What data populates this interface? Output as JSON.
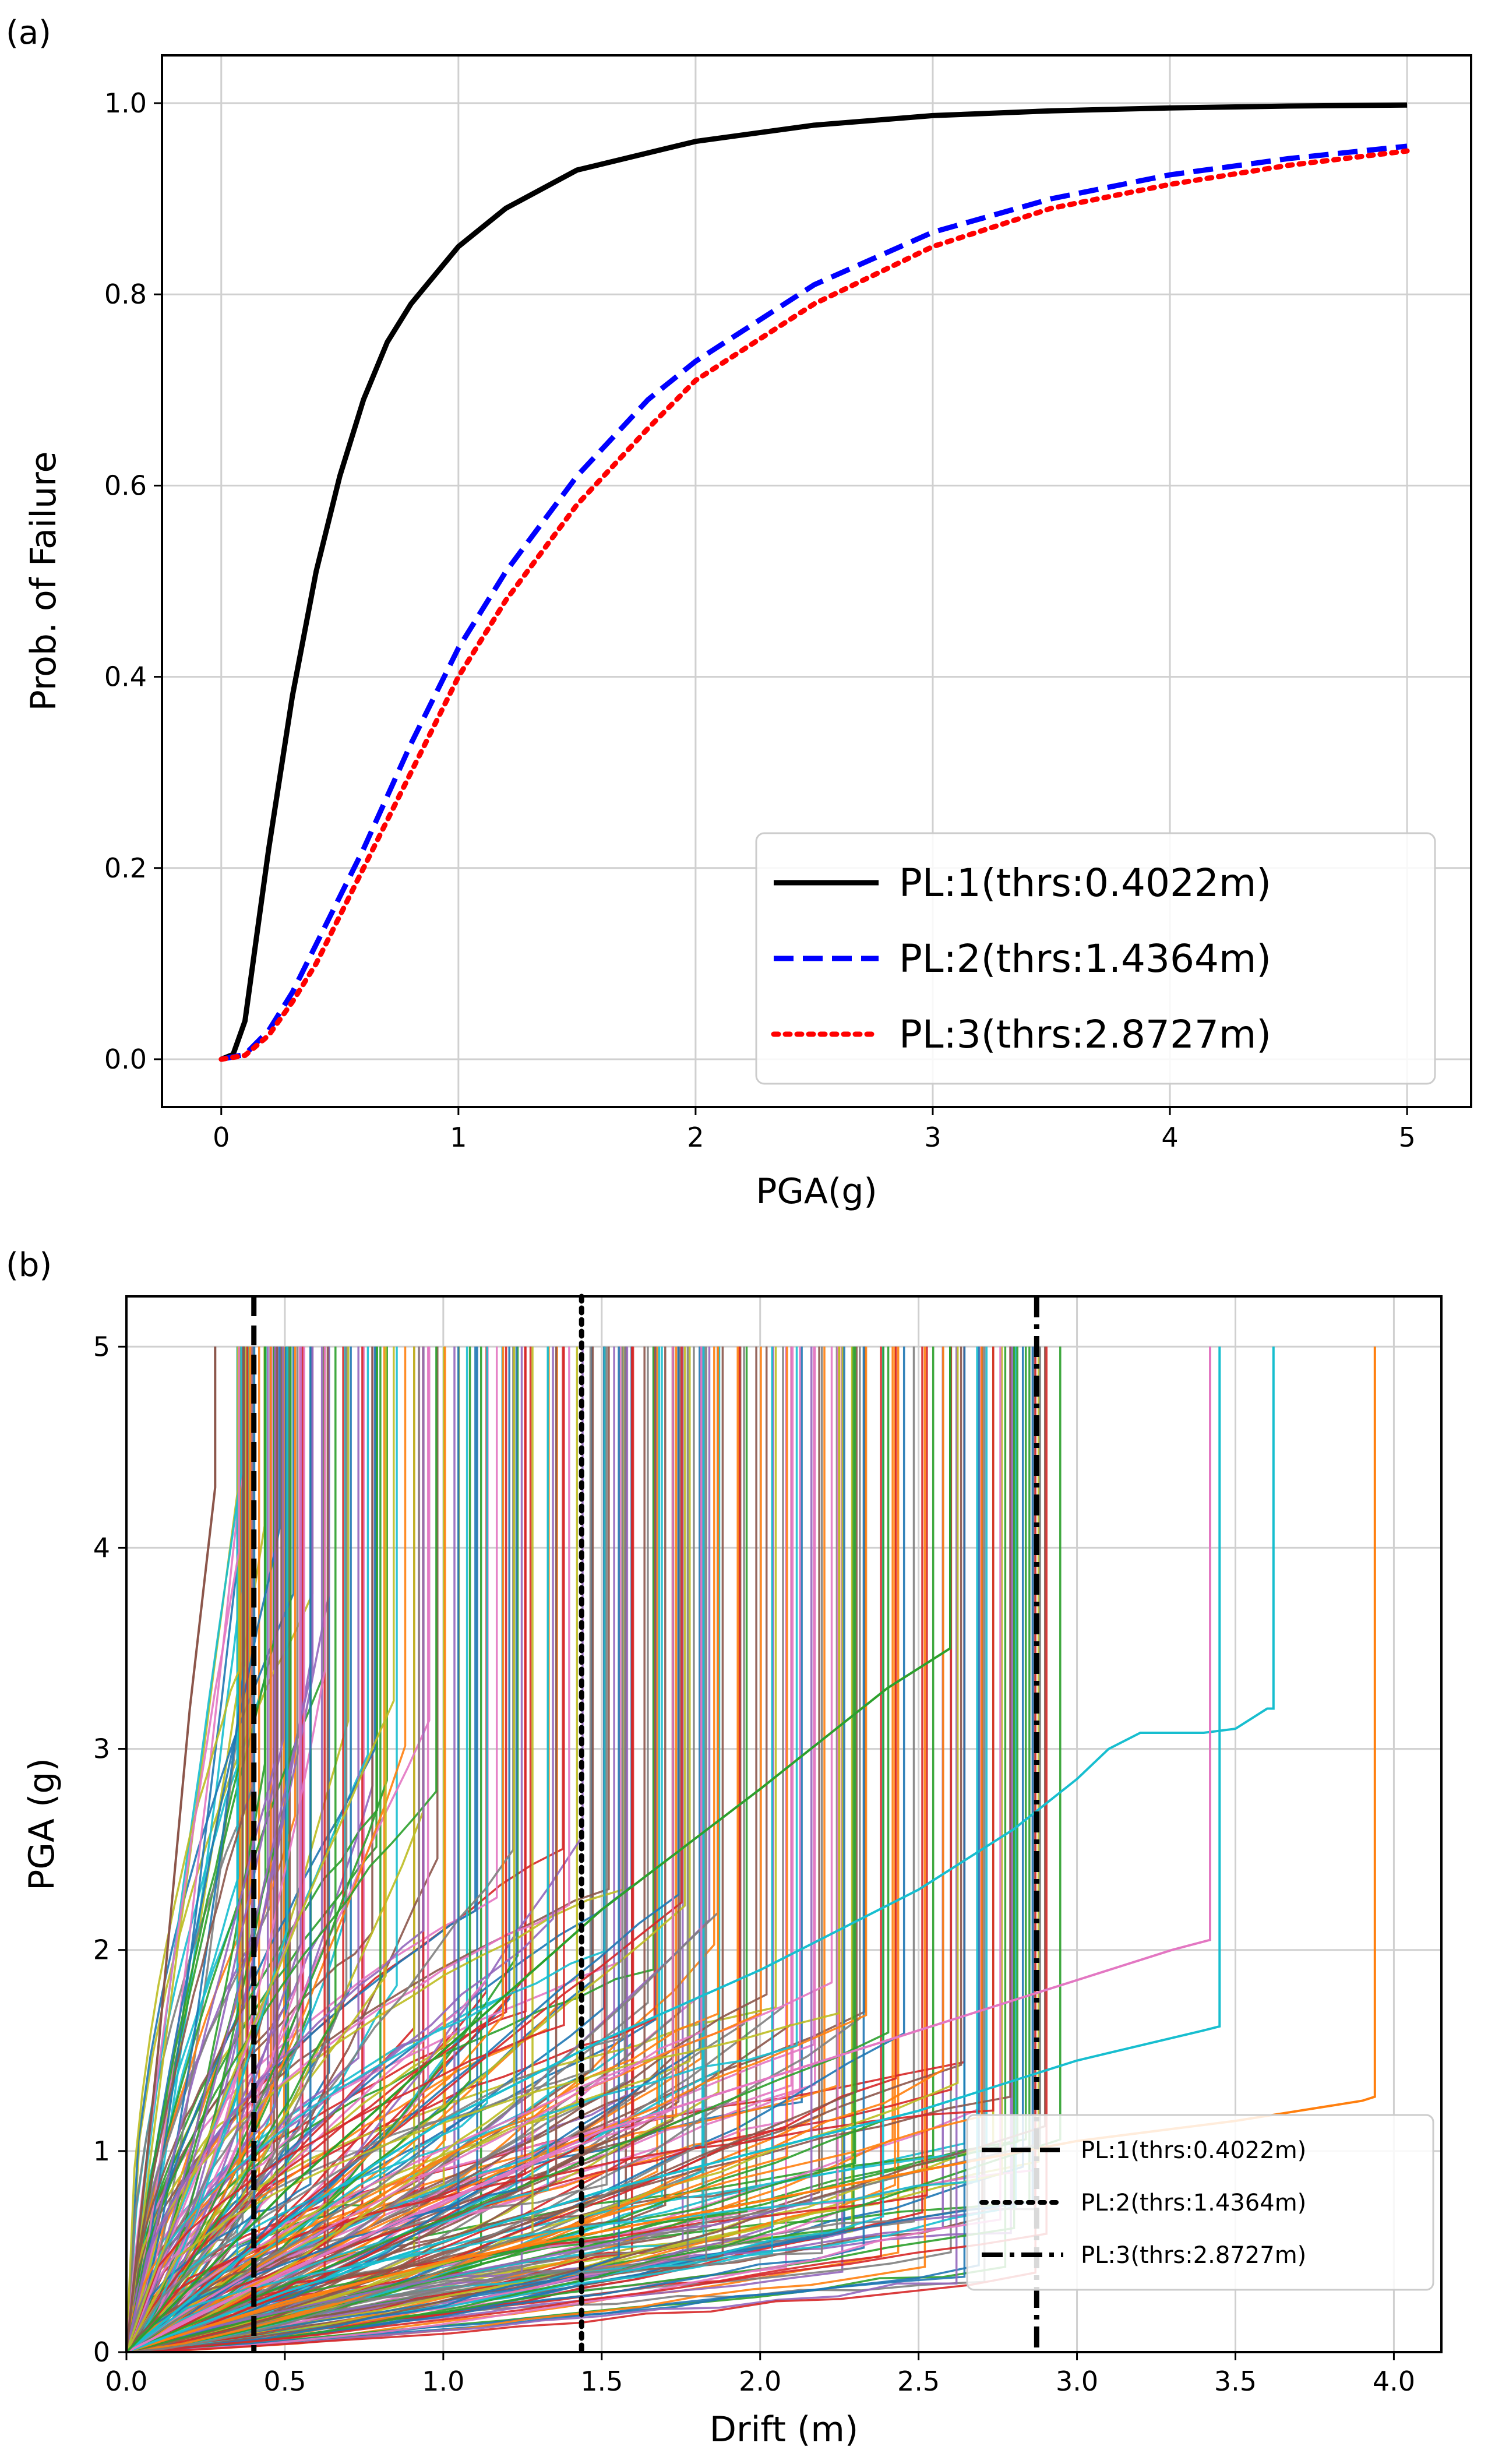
{
  "chart_data": [
    {
      "panel": "(a)",
      "type": "line",
      "xlabel": "PGA(g)",
      "ylabel": "Prob. of Failure",
      "xlim": [
        -0.25,
        5.27
      ],
      "ylim": [
        -0.05,
        1.05
      ],
      "xticks": [
        "0",
        "1",
        "2",
        "3",
        "4",
        "5"
      ],
      "yticks": [
        "0.0",
        "0.2",
        "0.4",
        "0.6",
        "0.8",
        "1.0"
      ],
      "grid": true,
      "legend_position": "bottom-right",
      "series": [
        {
          "name": "PL:1(thrs:0.4022m)",
          "style": "solid",
          "color": "#000000",
          "x": [
            0,
            0.05,
            0.1,
            0.15,
            0.2,
            0.3,
            0.4,
            0.5,
            0.6,
            0.7,
            0.8,
            1.0,
            1.2,
            1.5,
            2.0,
            2.5,
            3.0,
            3.5,
            4.0,
            4.5,
            5.0
          ],
          "y": [
            0,
            0.005,
            0.04,
            0.13,
            0.22,
            0.38,
            0.51,
            0.61,
            0.69,
            0.75,
            0.79,
            0.85,
            0.89,
            0.93,
            0.96,
            0.977,
            0.987,
            0.992,
            0.995,
            0.997,
            0.998
          ]
        },
        {
          "name": "PL:2(thrs:1.4364m)",
          "style": "dashed",
          "color": "#0000ff",
          "x": [
            0,
            0.1,
            0.2,
            0.3,
            0.4,
            0.5,
            0.6,
            0.8,
            1.0,
            1.2,
            1.5,
            1.8,
            2.0,
            2.5,
            3.0,
            3.5,
            4.0,
            4.5,
            5.0
          ],
          "y": [
            0,
            0.005,
            0.03,
            0.07,
            0.12,
            0.17,
            0.22,
            0.33,
            0.43,
            0.51,
            0.61,
            0.69,
            0.73,
            0.81,
            0.865,
            0.9,
            0.925,
            0.942,
            0.955
          ]
        },
        {
          "name": "PL:3(thrs:2.8727m)",
          "style": "dotted",
          "color": "#ff0000",
          "x": [
            0,
            0.1,
            0.2,
            0.3,
            0.4,
            0.5,
            0.6,
            0.8,
            1.0,
            1.2,
            1.5,
            1.8,
            2.0,
            2.5,
            3.0,
            3.5,
            4.0,
            4.5,
            5.0
          ],
          "y": [
            0,
            0.004,
            0.025,
            0.06,
            0.1,
            0.15,
            0.2,
            0.3,
            0.4,
            0.48,
            0.58,
            0.66,
            0.71,
            0.79,
            0.85,
            0.89,
            0.915,
            0.935,
            0.95
          ]
        }
      ]
    },
    {
      "panel": "(b)",
      "type": "line",
      "xlabel": "Drift (m)",
      "ylabel": "PGA (g)",
      "xlim": [
        0,
        4.15
      ],
      "ylim": [
        0,
        5.25
      ],
      "xticks": [
        "0.0",
        "0.5",
        "1.0",
        "1.5",
        "2.0",
        "2.5",
        "3.0",
        "3.5",
        "4.0"
      ],
      "yticks": [
        "0",
        "1",
        "2",
        "3",
        "4",
        "5"
      ],
      "grid": true,
      "legend_position": "bottom-right",
      "thresholds": [
        {
          "name": "PL:1(thrs:0.4022m)",
          "x": 0.4022,
          "style": "dashed"
        },
        {
          "name": "PL:2(thrs:1.4364m)",
          "x": 1.4364,
          "style": "dotted"
        },
        {
          "name": "PL:3(thrs:2.8727m)",
          "x": 2.8727,
          "style": "dashdot"
        }
      ],
      "palette": [
        "#1f77b4",
        "#ff7f0e",
        "#2ca02c",
        "#d62728",
        "#9467bd",
        "#8c564b",
        "#e377c2",
        "#7f7f7f",
        "#bcbd22",
        "#17becf"
      ],
      "curve_count": 300,
      "highlighted_curves": [
        {
          "color": "#17becf",
          "x": [
            0,
            0.5,
            1.0,
            1.5,
            2.0,
            2.5,
            2.8,
            3.0,
            3.1,
            3.2,
            3.4,
            3.5,
            3.6,
            3.62,
            3.62
          ],
          "y": [
            0,
            0.65,
            1.15,
            1.55,
            1.9,
            2.3,
            2.6,
            2.85,
            3.0,
            3.08,
            3.08,
            3.1,
            3.2,
            3.2,
            5.0
          ]
        },
        {
          "color": "#ff7f0e",
          "x": [
            0,
            0.5,
            1.0,
            1.5,
            2.0,
            2.5,
            3.0,
            3.5,
            3.9,
            3.94,
            3.94
          ],
          "y": [
            0,
            0.25,
            0.45,
            0.6,
            0.75,
            0.9,
            1.05,
            1.15,
            1.25,
            1.27,
            5.0
          ]
        },
        {
          "color": "#17becf",
          "x": [
            0,
            0.5,
            1.0,
            1.5,
            2.0,
            2.5,
            3.0,
            3.4,
            3.45,
            3.45
          ],
          "y": [
            0,
            0.3,
            0.55,
            0.8,
            1.0,
            1.2,
            1.45,
            1.6,
            1.62,
            5.0
          ]
        },
        {
          "color": "#e377c2",
          "x": [
            0,
            0.5,
            1.0,
            1.5,
            2.0,
            2.5,
            3.0,
            3.3,
            3.42,
            3.42
          ],
          "y": [
            0,
            0.4,
            0.75,
            1.1,
            1.35,
            1.6,
            1.85,
            2.0,
            2.05,
            5.0
          ]
        },
        {
          "color": "#2ca02c",
          "x": [
            0,
            0.5,
            1.0,
            1.5,
            2.0,
            2.4,
            2.6,
            2.6
          ],
          "y": [
            0,
            0.8,
            1.5,
            2.2,
            2.8,
            3.3,
            3.5,
            5.0
          ]
        },
        {
          "color": "#8c564b",
          "x": [
            0,
            0.1,
            0.2,
            0.28,
            0.28
          ],
          "y": [
            0,
            1.5,
            3.2,
            4.3,
            5.0
          ]
        }
      ]
    }
  ]
}
